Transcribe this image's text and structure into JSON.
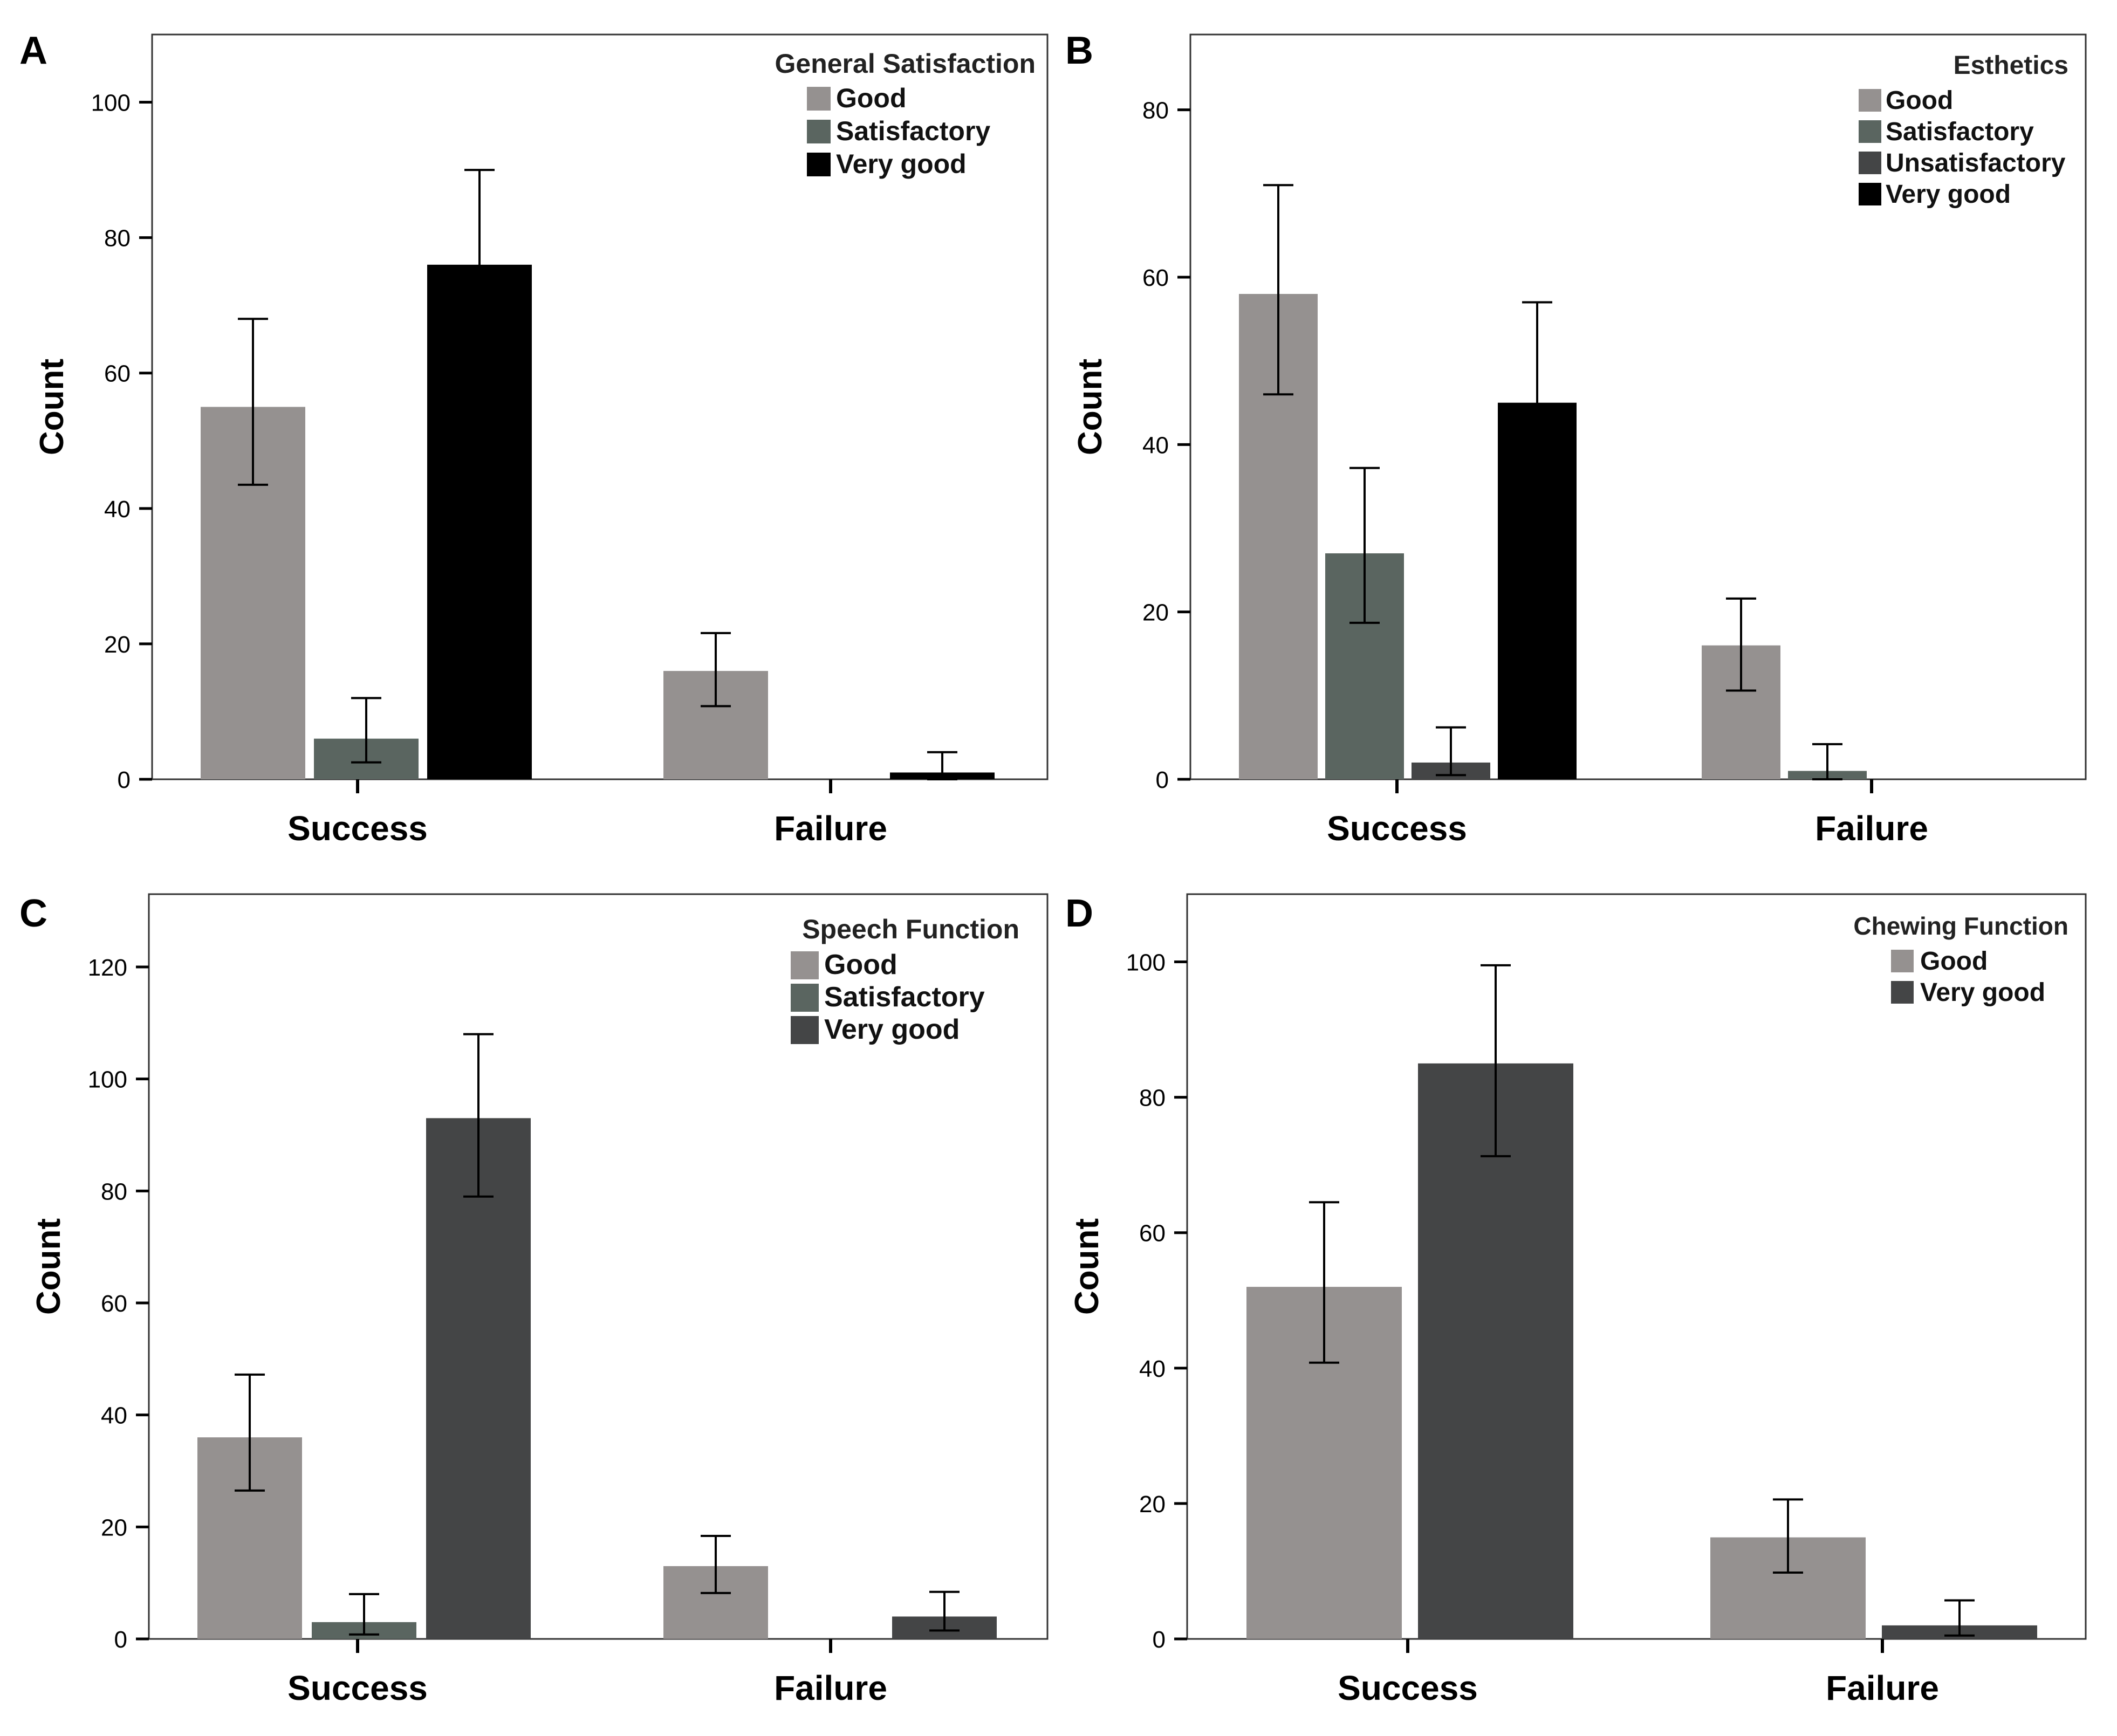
{
  "chart_data": [
    {
      "panel": "A",
      "type": "bar",
      "ylabel": "Count",
      "categories": [
        "Success",
        "Failure"
      ],
      "ylim": [
        0,
        110
      ],
      "yticks": [
        0,
        20,
        40,
        60,
        80,
        100
      ],
      "legend_title": "General Satisfaction",
      "legend_placement": "top-right",
      "series": [
        {
          "name": "Good",
          "color": "#959190",
          "values": [
            55,
            16
          ],
          "error_low": [
            43.5,
            10.8
          ],
          "error_high": [
            68,
            21.6
          ]
        },
        {
          "name": "Satisfactory",
          "color": "#5a6560",
          "values": [
            6,
            0
          ],
          "error_low": [
            2.5,
            0
          ],
          "error_high": [
            12,
            0
          ]
        },
        {
          "name": "Very good",
          "color": "#000000",
          "values": [
            76,
            1
          ],
          "error_low": [
            62,
            0
          ],
          "error_high": [
            90,
            4
          ]
        }
      ]
    },
    {
      "panel": "B",
      "type": "bar",
      "ylabel": "Count",
      "categories": [
        "Success",
        "Failure"
      ],
      "ylim": [
        0,
        89
      ],
      "yticks": [
        0,
        20,
        40,
        60,
        80
      ],
      "legend_title": "Esthetics",
      "legend_placement": "top-right",
      "series": [
        {
          "name": "Good",
          "color": "#959190",
          "values": [
            58,
            16
          ],
          "error_low": [
            46,
            10.6
          ],
          "error_high": [
            71,
            21.6
          ]
        },
        {
          "name": "Satisfactory",
          "color": "#5a6560",
          "values": [
            27,
            1
          ],
          "error_low": [
            18.7,
            0
          ],
          "error_high": [
            37.2,
            4.2
          ]
        },
        {
          "name": "Unsatisfactory",
          "color": "#444546",
          "values": [
            2,
            0
          ],
          "error_low": [
            0.5,
            0
          ],
          "error_high": [
            6.2,
            0
          ]
        },
        {
          "name": "Very good",
          "color": "#000000",
          "values": [
            45,
            0
          ],
          "error_low": [
            34,
            0
          ],
          "error_high": [
            57,
            0
          ]
        }
      ]
    },
    {
      "panel": "C",
      "type": "bar",
      "ylabel": "Count",
      "categories": [
        "Success",
        "Failure"
      ],
      "ylim": [
        0,
        133
      ],
      "yticks": [
        0,
        20,
        40,
        60,
        80,
        100,
        120
      ],
      "legend_title": "Speech Function",
      "legend_placement": "top-right",
      "series": [
        {
          "name": "Good",
          "color": "#959190",
          "values": [
            36,
            13
          ],
          "error_low": [
            26.5,
            8.2
          ],
          "error_high": [
            47.2,
            18.4
          ]
        },
        {
          "name": "Satisfactory",
          "color": "#5a6560",
          "values": [
            3,
            0
          ],
          "error_low": [
            0.8,
            0
          ],
          "error_high": [
            8,
            0
          ]
        },
        {
          "name": "Very good",
          "color": "#444546",
          "values": [
            93,
            4
          ],
          "error_low": [
            79,
            1.5
          ],
          "error_high": [
            108,
            8.4
          ]
        }
      ]
    },
    {
      "panel": "D",
      "type": "bar",
      "ylabel": "Count",
      "categories": [
        "Success",
        "Failure"
      ],
      "ylim": [
        0,
        110
      ],
      "yticks": [
        0,
        20,
        40,
        60,
        80,
        100
      ],
      "legend_title": "Chewing Function",
      "legend_placement": "top-right",
      "series": [
        {
          "name": "Good",
          "color": "#959190",
          "values": [
            52,
            15
          ],
          "error_low": [
            40.8,
            9.8
          ],
          "error_high": [
            64.5,
            20.6
          ]
        },
        {
          "name": "Very good",
          "color": "#444546",
          "values": [
            85,
            2
          ],
          "error_low": [
            71.3,
            0.5
          ],
          "error_high": [
            99.5,
            5.7
          ]
        }
      ]
    }
  ]
}
